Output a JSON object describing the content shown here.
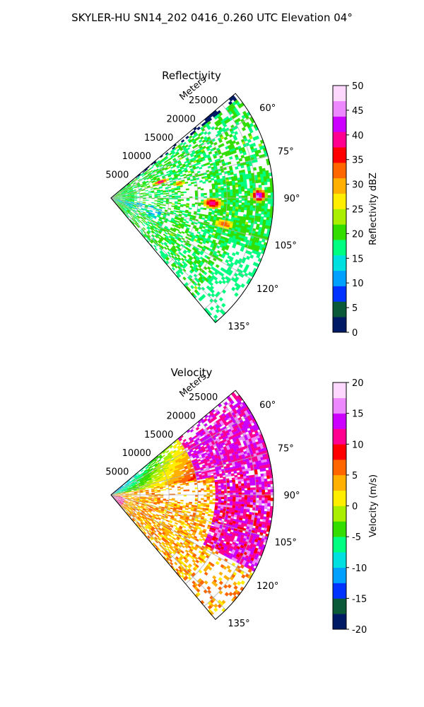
{
  "figure": {
    "title": "SKYLER-HU  SN14_202  0416_0.260 UTC Elevation 04°"
  },
  "chart_data": [
    {
      "type": "heatmap",
      "subtype": "polar-sector",
      "title": "Reflectivity",
      "range_label": "Meters",
      "range_ticks": [
        5000,
        10000,
        15000,
        20000,
        25000
      ],
      "range_max": 28000,
      "angle_ticks": [
        60,
        75,
        90,
        105,
        120,
        135
      ],
      "angle_range_deg": [
        50,
        140
      ],
      "grid": true,
      "colorbar": {
        "label": "Reflectivity dBZ",
        "min": 0,
        "max": 50,
        "ticks": [
          0,
          5,
          10,
          15,
          20,
          25,
          30,
          35,
          40,
          45,
          50
        ],
        "colors": [
          "#001a66",
          "#0a5a3a",
          "#0033ff",
          "#00a0ff",
          "#00e0e0",
          "#00ff80",
          "#33dd00",
          "#aaee00",
          "#ffee00",
          "#ffb000",
          "#ff6600",
          "#ff0000",
          "#ff0090",
          "#cc00ff",
          "#ee88ff",
          "#ffd8ff"
        ]
      },
      "echo_regions": [
        {
          "az": [
            88,
            100
          ],
          "range_m": [
            14000,
            20000
          ],
          "dbz": 38
        },
        {
          "az": [
            85,
            95
          ],
          "range_m": [
            22000,
            26000
          ],
          "dbz": 42
        },
        {
          "az": [
            70,
            78
          ],
          "range_m": [
            7000,
            11000
          ],
          "dbz": 40
        },
        {
          "az": [
            70,
            140
          ],
          "range_m": [
            0,
            28000
          ],
          "dbz": 20
        }
      ]
    },
    {
      "type": "heatmap",
      "subtype": "polar-sector",
      "title": "Velocity",
      "range_label": "Meters",
      "range_ticks": [
        5000,
        10000,
        15000,
        20000,
        25000
      ],
      "range_max": 28000,
      "angle_ticks": [
        60,
        75,
        90,
        105,
        120,
        135
      ],
      "angle_range_deg": [
        50,
        140
      ],
      "grid": true,
      "colorbar": {
        "label": "Velocity (m/s)",
        "min": -20,
        "max": 20,
        "ticks": [
          -20,
          -15,
          -10,
          -5,
          0,
          5,
          10,
          15,
          20
        ],
        "colors": [
          "#001a66",
          "#0a5a3a",
          "#0033ff",
          "#00a0ff",
          "#00e0e0",
          "#00ff80",
          "#33dd00",
          "#aaee00",
          "#ffee00",
          "#ffb000",
          "#ff6600",
          "#ff0000",
          "#ff0090",
          "#cc00ff",
          "#ee88ff",
          "#ffd8ff"
        ]
      },
      "velocity_regions": [
        {
          "az": [
            55,
            80
          ],
          "range_m": [
            0,
            15000
          ],
          "ms": -5
        },
        {
          "az": [
            60,
            80
          ],
          "range_m": [
            20000,
            28000
          ],
          "ms": 15
        },
        {
          "az": [
            85,
            115
          ],
          "range_m": [
            18000,
            28000
          ],
          "ms": 12
        },
        {
          "az": [
            90,
            135
          ],
          "range_m": [
            3000,
            20000
          ],
          "ms": 3
        }
      ]
    }
  ]
}
